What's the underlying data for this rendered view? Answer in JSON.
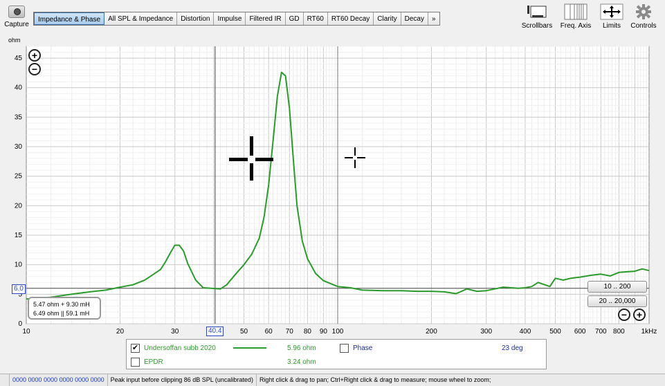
{
  "toolbar": {
    "capture_label": "Capture",
    "tabs": [
      "Impedance & Phase",
      "All SPL & Impedance",
      "Distortion",
      "Impulse",
      "Filtered IR",
      "GD",
      "RT60",
      "RT60 Decay",
      "Clarity",
      "Decay",
      "»"
    ],
    "active_tab": 0,
    "tools": [
      {
        "label": "Scrollbars",
        "icon": "scrollbars-icon"
      },
      {
        "label": "Freq. Axis",
        "icon": "freq-axis-icon"
      },
      {
        "label": "Limits",
        "icon": "limits-icon"
      },
      {
        "label": "Controls",
        "icon": "gear-icon"
      }
    ]
  },
  "plot": {
    "unit_label": "ohm",
    "marker_value": "6.0",
    "cursor_freq": "40.4",
    "model_line1": "5.47 ohm + 9.30 mH",
    "model_line2": "6.49 ohm || 59.1 mH",
    "range_buttons": [
      "10 .. 200",
      "20 .. 20,000"
    ],
    "zoom_in": "+",
    "zoom_out": "−"
  },
  "chart_data": {
    "type": "line",
    "xscale": "log",
    "xlim": [
      10,
      1000
    ],
    "ylim": [
      0,
      47
    ],
    "y_ticks": [
      0,
      5,
      10,
      15,
      20,
      25,
      30,
      35,
      40,
      45
    ],
    "x_ticks": [
      {
        "v": 10,
        "label": "10"
      },
      {
        "v": 20,
        "label": "20"
      },
      {
        "v": 30,
        "label": "30"
      },
      {
        "v": 50,
        "label": "50"
      },
      {
        "v": 60,
        "label": "60"
      },
      {
        "v": 70,
        "label": "70"
      },
      {
        "v": 80,
        "label": "80"
      },
      {
        "v": 90,
        "label": "90"
      },
      {
        "v": 100,
        "label": "100"
      },
      {
        "v": 200,
        "label": "200"
      },
      {
        "v": 300,
        "label": "300"
      },
      {
        "v": 400,
        "label": "400"
      },
      {
        "v": 500,
        "label": "500"
      },
      {
        "v": 600,
        "label": "600"
      },
      {
        "v": 700,
        "label": "700"
      },
      {
        "v": 800,
        "label": "800"
      },
      {
        "v": 1000,
        "label": "1kHz"
      }
    ],
    "grid": true,
    "cursor_x": 40.4,
    "cursor_y": 6.0,
    "vline_x": 100,
    "series": [
      {
        "name": "Undersoffan subb 2020",
        "color": "#2a9a2a",
        "x": [
          10,
          12,
          14,
          16,
          18,
          20,
          22,
          24,
          26,
          27,
          28,
          29,
          30,
          31,
          32,
          33,
          35,
          37,
          40.4,
          42,
          44,
          47,
          50,
          53,
          56,
          58,
          60,
          62,
          64,
          66,
          68,
          70,
          72,
          74,
          77,
          80,
          85,
          90,
          100,
          110,
          120,
          140,
          160,
          180,
          200,
          220,
          240,
          260,
          280,
          300,
          340,
          380,
          400,
          420,
          440,
          480,
          500,
          530,
          560,
          600,
          650,
          700,
          750,
          800,
          850,
          900,
          950,
          1000
        ],
        "y": [
          4.2,
          4.5,
          5.0,
          5.4,
          5.7,
          6.2,
          6.6,
          7.4,
          8.6,
          9.2,
          10.5,
          12.0,
          13.3,
          13.3,
          12.3,
          10.2,
          7.4,
          6.1,
          5.96,
          5.9,
          6.6,
          8.4,
          10.0,
          11.8,
          14.5,
          18.0,
          23.5,
          31.0,
          38.5,
          42.6,
          42.0,
          36.5,
          28.0,
          20.0,
          14.0,
          11.0,
          8.5,
          7.3,
          6.3,
          6.1,
          5.7,
          5.6,
          5.6,
          5.5,
          5.5,
          5.4,
          5.1,
          5.9,
          5.5,
          5.6,
          6.2,
          6.0,
          6.1,
          6.3,
          7.0,
          6.3,
          7.7,
          7.4,
          7.7,
          7.9,
          8.2,
          8.4,
          8.1,
          8.7,
          8.8,
          8.9,
          9.3,
          9.0
        ]
      }
    ]
  },
  "legend": {
    "series_name": "Undersoffan subb 2020",
    "series_value": "5.96 ohm",
    "series_checked": "✔",
    "epdr_name": "EPDR",
    "epdr_value": "3.24 ohm",
    "phase_name": "Phase",
    "phase_value": "23 deg",
    "series_color": "#2a9a2a",
    "epdr_color": "#2a9a2a",
    "phase_color": "#1b2aa0"
  },
  "status": {
    "c0": "",
    "c1": "0000 0000  0000 0000  0000 0000",
    "c2": "Peak input before clipping 86 dB SPL (uncalibrated)",
    "c3": "Right click & drag to pan; Ctrl+Right click & drag to measure; mouse wheel to zoom;"
  }
}
